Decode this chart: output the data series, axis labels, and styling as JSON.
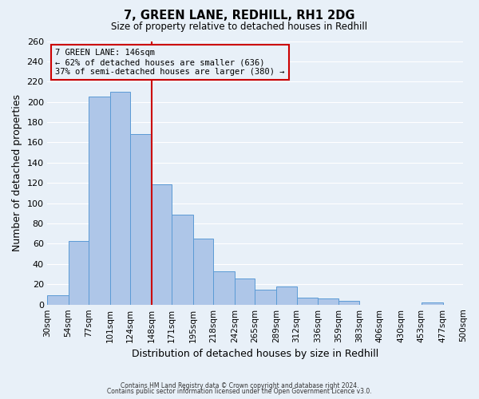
{
  "title": "7, GREEN LANE, REDHILL, RH1 2DG",
  "subtitle": "Size of property relative to detached houses in Redhill",
  "xlabel": "Distribution of detached houses by size in Redhill",
  "ylabel": "Number of detached properties",
  "bin_labels": [
    "30sqm",
    "54sqm",
    "77sqm",
    "101sqm",
    "124sqm",
    "148sqm",
    "171sqm",
    "195sqm",
    "218sqm",
    "242sqm",
    "265sqm",
    "289sqm",
    "312sqm",
    "336sqm",
    "359sqm",
    "383sqm",
    "406sqm",
    "430sqm",
    "453sqm",
    "477sqm",
    "500sqm"
  ],
  "bin_edges": [
    30,
    54,
    77,
    101,
    124,
    148,
    171,
    195,
    218,
    242,
    265,
    289,
    312,
    336,
    359,
    383,
    406,
    430,
    453,
    477,
    500
  ],
  "bar_values": [
    9,
    63,
    205,
    210,
    168,
    119,
    89,
    65,
    33,
    26,
    15,
    18,
    7,
    6,
    4,
    0,
    0,
    0,
    2,
    0
  ],
  "bar_color": "#aec6e8",
  "bar_edge_color": "#5b9bd5",
  "vline_x": 148,
  "vline_color": "#cc0000",
  "annotation_line1": "7 GREEN LANE: 146sqm",
  "annotation_line2": "← 62% of detached houses are smaller (636)",
  "annotation_line3": "37% of semi-detached houses are larger (380) →",
  "ylim": [
    0,
    260
  ],
  "yticks": [
    0,
    20,
    40,
    60,
    80,
    100,
    120,
    140,
    160,
    180,
    200,
    220,
    240,
    260
  ],
  "background_color": "#e8f0f8",
  "grid_color": "#ffffff",
  "footer_line1": "Contains HM Land Registry data © Crown copyright and database right 2024.",
  "footer_line2": "Contains public sector information licensed under the Open Government Licence v3.0."
}
